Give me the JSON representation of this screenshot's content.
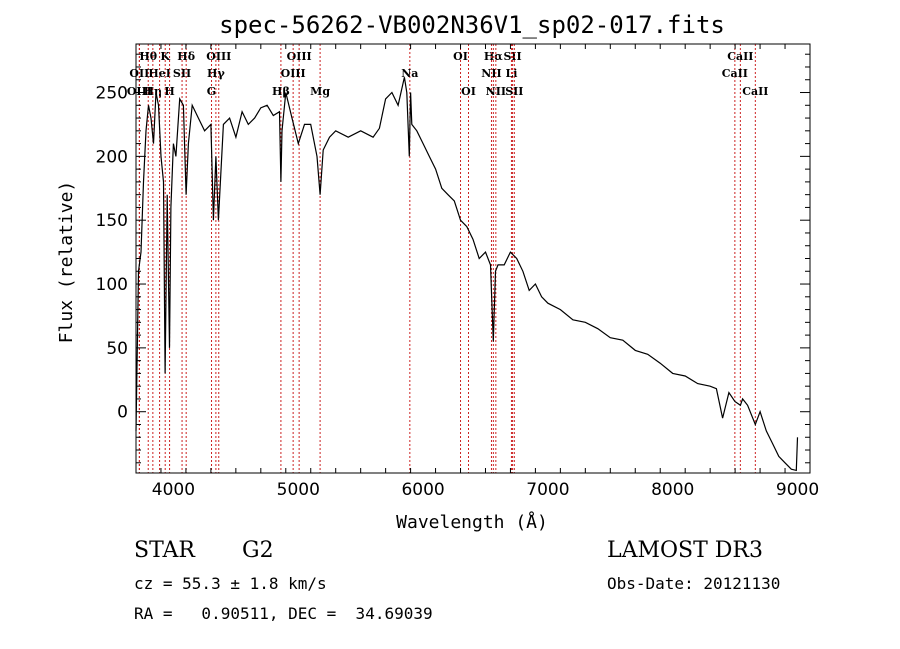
{
  "chart_data": {
    "type": "line",
    "title": "spec-56262-VB002N36V1_sp02-017.fits",
    "xlabel": "Wavelength (Å)",
    "ylabel": "Flux (relative)",
    "xlim": [
      3700,
      9100
    ],
    "ylim": [
      -48,
      288
    ],
    "xticks": [
      4000,
      5000,
      6000,
      7000,
      8000,
      9000
    ],
    "yticks": [
      0,
      50,
      100,
      150,
      200,
      250
    ],
    "xminor_step": 200,
    "yminor_step": 10,
    "series": [
      {
        "name": "spectrum",
        "x": [
          3700,
          3720,
          3740,
          3760,
          3780,
          3800,
          3820,
          3840,
          3860,
          3880,
          3900,
          3920,
          3933,
          3950,
          3968,
          3980,
          4000,
          4020,
          4050,
          4080,
          4101,
          4120,
          4150,
          4200,
          4250,
          4300,
          4320,
          4340,
          4360,
          4400,
          4450,
          4500,
          4550,
          4600,
          4650,
          4700,
          4750,
          4800,
          4850,
          4861,
          4870,
          4900,
          4950,
          5000,
          5050,
          5100,
          5150,
          5175,
          5200,
          5250,
          5300,
          5400,
          5500,
          5600,
          5650,
          5700,
          5750,
          5800,
          5850,
          5870,
          5890,
          5900,
          5910,
          5950,
          6000,
          6050,
          6100,
          6150,
          6200,
          6250,
          6300,
          6350,
          6400,
          6450,
          6500,
          6540,
          6563,
          6580,
          6600,
          6650,
          6700,
          6750,
          6800,
          6850,
          6900,
          6950,
          7000,
          7100,
          7200,
          7300,
          7400,
          7500,
          7600,
          7700,
          7800,
          7900,
          8000,
          8100,
          8200,
          8300,
          8350,
          8400,
          8450,
          8498,
          8542,
          8560,
          8600,
          8662,
          8700,
          8750,
          8800,
          8850,
          8900,
          8950,
          8990,
          9000
        ],
        "values": [
          -15,
          110,
          125,
          180,
          220,
          240,
          230,
          210,
          250,
          240,
          200,
          180,
          30,
          170,
          50,
          160,
          210,
          200,
          245,
          240,
          170,
          210,
          240,
          230,
          220,
          225,
          150,
          200,
          150,
          225,
          230,
          215,
          235,
          225,
          230,
          238,
          240,
          232,
          235,
          180,
          220,
          250,
          230,
          210,
          225,
          225,
          200,
          170,
          205,
          215,
          220,
          215,
          220,
          215,
          222,
          245,
          250,
          240,
          262,
          250,
          200,
          250,
          225,
          220,
          210,
          200,
          190,
          175,
          170,
          165,
          150,
          145,
          135,
          120,
          125,
          115,
          55,
          110,
          115,
          115,
          125,
          120,
          110,
          95,
          100,
          90,
          85,
          80,
          72,
          70,
          65,
          58,
          56,
          48,
          45,
          38,
          30,
          28,
          22,
          20,
          18,
          -5,
          15,
          8,
          5,
          10,
          5,
          -10,
          0,
          -15,
          -25,
          -35,
          -40,
          -45,
          -46,
          -20
        ]
      }
    ],
    "line_markers": [
      {
        "label": "Hθ",
        "x": 3798,
        "row": 1
      },
      {
        "label": "OII",
        "x": 3727,
        "row": 2
      },
      {
        "label": "OIII",
        "x": 3727,
        "row": 3
      },
      {
        "label": "Hη",
        "x": 3835,
        "row": 3
      },
      {
        "label": "K",
        "x": 3934,
        "row": 1
      },
      {
        "label": "HeI",
        "x": 3889,
        "row": 2
      },
      {
        "label": "SII",
        "x": 4069,
        "row": 2
      },
      {
        "label": "H",
        "x": 3969,
        "row": 3
      },
      {
        "label": "Hδ",
        "x": 4102,
        "row": 1
      },
      {
        "label": "OIII",
        "x": 4363,
        "row": 1
      },
      {
        "label": "Hγ",
        "x": 4340,
        "row": 2
      },
      {
        "label": "G",
        "x": 4305,
        "row": 3
      },
      {
        "label": "OIII",
        "x": 5007,
        "row": 1
      },
      {
        "label": "OIII",
        "x": 4959,
        "row": 2
      },
      {
        "label": "Hβ",
        "x": 4861,
        "row": 3
      },
      {
        "label": "Mg",
        "x": 5175,
        "row": 3
      },
      {
        "label": "Na",
        "x": 5894,
        "row": 2
      },
      {
        "label": "OI",
        "x": 6300,
        "row": 1
      },
      {
        "label": "OI",
        "x": 6364,
        "row": 3
      },
      {
        "label": "Hα",
        "x": 6563,
        "row": 1
      },
      {
        "label": "NII",
        "x": 6548,
        "row": 2
      },
      {
        "label": "NII",
        "x": 6583,
        "row": 3
      },
      {
        "label": "SII",
        "x": 6717,
        "row": 1
      },
      {
        "label": "Li",
        "x": 6708,
        "row": 2
      },
      {
        "label": "SII",
        "x": 6731,
        "row": 3
      },
      {
        "label": "CaII",
        "x": 8542,
        "row": 1
      },
      {
        "label": "CaII",
        "x": 8498,
        "row": 2
      },
      {
        "label": "CaII",
        "x": 8662,
        "row": 3
      }
    ],
    "colors": {
      "spectrum": "#000000",
      "marker_line": "#cc2222",
      "text": "#000000"
    }
  },
  "info": {
    "object_class": "STAR",
    "subclass": "G2",
    "survey": "LAMOST DR3",
    "redshift": "cz = 55.3 ± 1.8 km/s",
    "obs_date": "Obs-Date: 20121130",
    "coords": "RA =   0.90511, DEC =  34.69039"
  }
}
